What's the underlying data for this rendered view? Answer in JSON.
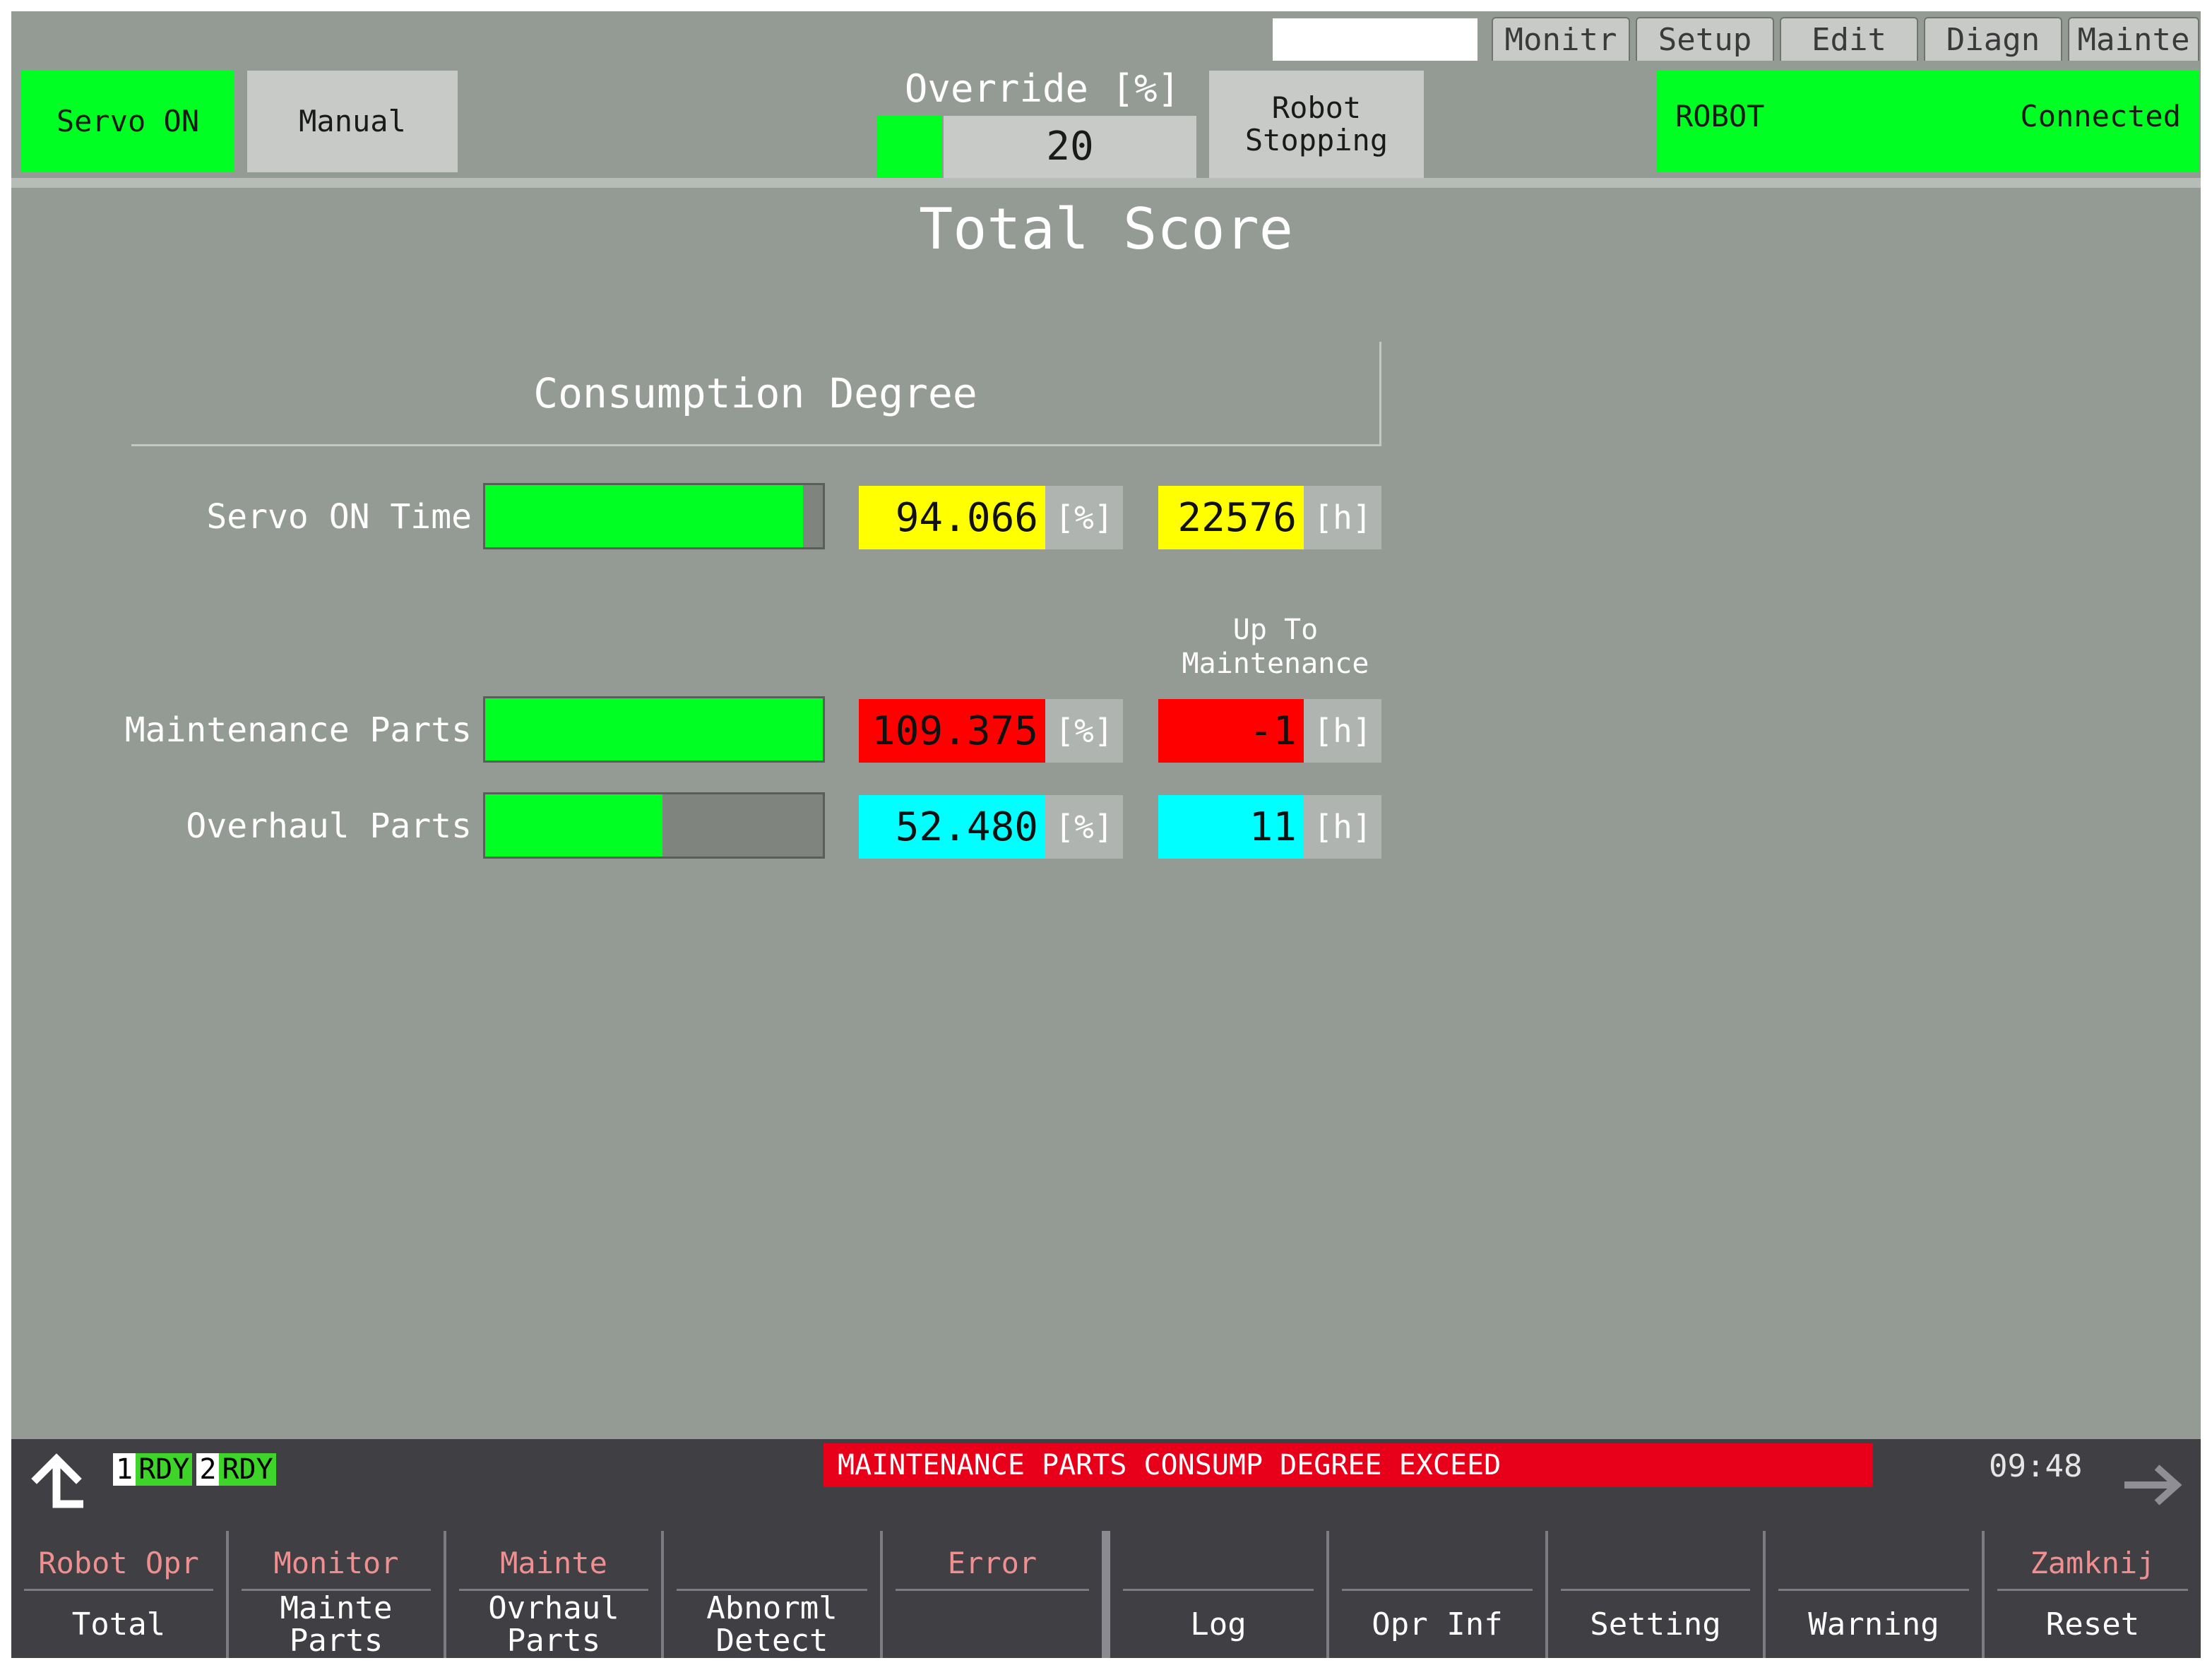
{
  "tabs": [
    "Monitr",
    "Setup",
    "Edit",
    "Diagn",
    "Mainte"
  ],
  "status": {
    "servo": "Servo ON",
    "mode": "Manual",
    "override_label": "Override [%]",
    "override_value": "20",
    "robot_state_line1": "Robot",
    "robot_state_line2": "Stopping",
    "robot_name": "ROBOT",
    "connection": "Connected"
  },
  "page_title": "Total Score",
  "section_title": "Consumption Degree",
  "upto_line1": "Up To",
  "upto_line2": "Maintenance",
  "rows": [
    {
      "label": "Servo ON Time",
      "percent": "94.066",
      "percent_unit": "[%]",
      "hours": "22576",
      "hours_unit": "[h]",
      "fill": 94.066,
      "color": "#ffff00"
    },
    {
      "label": "Maintenance Parts",
      "percent": "109.375",
      "percent_unit": "[%]",
      "hours": "-1",
      "hours_unit": "[h]",
      "fill": 100,
      "color": "#ff0000"
    },
    {
      "label": "Overhaul Parts",
      "percent": "52.480",
      "percent_unit": "[%]",
      "hours": "11",
      "hours_unit": "[h]",
      "fill": 52.48,
      "color": "#00ffff"
    }
  ],
  "bottom": {
    "rdy1_num": "1",
    "rdy1": "RDY",
    "rdy2_num": "2",
    "rdy2": "RDY",
    "alarm": "MAINTENANCE PARTS CONSUMP DEGREE EXCEED",
    "time": "09:48",
    "up_icon": "up-arrow-icon",
    "next_icon": "right-arrow-icon"
  },
  "fkeys": [
    {
      "top": "Robot  Opr",
      "bottom": "Total"
    },
    {
      "top": "Monitor",
      "bottom": "Mainte\nParts"
    },
    {
      "top": "Mainte",
      "bottom": "Ovrhaul\nParts"
    },
    {
      "top": "",
      "bottom": "Abnorml\nDetect"
    },
    {
      "top": "Error",
      "bottom": ""
    },
    {
      "top": "",
      "bottom": "Log"
    },
    {
      "top": "",
      "bottom": "Opr Inf"
    },
    {
      "top": "",
      "bottom": "Setting"
    },
    {
      "top": "",
      "bottom": "Warning"
    },
    {
      "top": "Zamknij",
      "bottom": "Reset"
    }
  ],
  "colors": {
    "ok_green": "#00ff22",
    "alarm_red": "#e8001a"
  }
}
